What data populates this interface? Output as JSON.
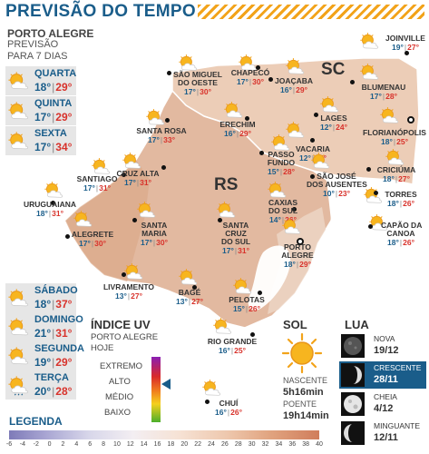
{
  "header": {
    "title": "PREVISÃO DO TEMPO"
  },
  "poa": {
    "title": "PORTO ALEGRE",
    "subtitle_lines": [
      "PREVISÃO",
      "PARA 7 DIAS"
    ],
    "days_top": [
      {
        "name": "QUARTA",
        "min": "18°",
        "max": "29°"
      },
      {
        "name": "QUINTA",
        "min": "17°",
        "max": "29°"
      },
      {
        "name": "SEXTA",
        "min": "17°",
        "max": "34°"
      }
    ],
    "days_bottom": [
      {
        "name": "SÁBADO",
        "min": "18°",
        "max": "37°"
      },
      {
        "name": "DOMINGO",
        "min": "21°",
        "max": "31°"
      },
      {
        "name": "SEGUNDA",
        "min": "19°",
        "max": "29°"
      },
      {
        "name": "TERÇA",
        "min": "20°",
        "max": "28°"
      }
    ]
  },
  "map": {
    "state_rs": "RS",
    "state_sc": "SC",
    "cities": [
      {
        "name": [
          "JOINVILLE"
        ],
        "min": "19°",
        "max": "27°"
      },
      {
        "name": [
          "SÃO MIGUEL",
          "DO OESTE"
        ],
        "min": "17°",
        "max": "30°"
      },
      {
        "name": [
          "CHAPECÓ"
        ],
        "min": "17°",
        "max": "30°"
      },
      {
        "name": [
          "JOAÇABA"
        ],
        "min": "16°",
        "max": "29°"
      },
      {
        "name": [
          "BLUMENAU"
        ],
        "min": "17°",
        "max": "28°"
      },
      {
        "name": [
          "LAGES"
        ],
        "min": "12°",
        "max": "24°"
      },
      {
        "name": [
          "FLORIANÓPOLIS"
        ],
        "min": "18°",
        "max": "25°"
      },
      {
        "name": [
          "SANTA ROSA"
        ],
        "min": "17°",
        "max": "33°"
      },
      {
        "name": [
          "ERECHIM"
        ],
        "min": "16°",
        "max": "29°"
      },
      {
        "name": [
          "PASSO",
          "FUNDO"
        ],
        "min": "15°",
        "max": "28°"
      },
      {
        "name": [
          "VACARIA"
        ],
        "min": "12°",
        "max": "25°"
      },
      {
        "name": [
          "SÃO JOSÉ",
          "DOS AUSENTES"
        ],
        "min": "10°",
        "max": "23°"
      },
      {
        "name": [
          "CRICIÚMA"
        ],
        "min": "18°",
        "max": "27°"
      },
      {
        "name": [
          "SANTIAGO"
        ],
        "min": "17°",
        "max": "31°"
      },
      {
        "name": [
          "CRUZ ALTA"
        ],
        "min": "17°",
        "max": "31°"
      },
      {
        "name": [
          "TORRES"
        ],
        "min": "18°",
        "max": "26°"
      },
      {
        "name": [
          "URUGUAIANA"
        ],
        "min": "18°",
        "max": "31°"
      },
      {
        "name": [
          "CAXIAS",
          "DO SUL"
        ],
        "min": "14°",
        "max": "26°"
      },
      {
        "name": [
          "CAPÃO DA",
          "CANOA"
        ],
        "min": "18°",
        "max": "26°"
      },
      {
        "name": [
          "ALEGRETE"
        ],
        "min": "17°",
        "max": "30°"
      },
      {
        "name": [
          "SANTA",
          "MARIA"
        ],
        "min": "17°",
        "max": "30°"
      },
      {
        "name": [
          "SANTA",
          "CRUZ",
          "DO SUL"
        ],
        "min": "17°",
        "max": "31°"
      },
      {
        "name": [
          "PORTO",
          "ALEGRE"
        ],
        "min": "18°",
        "max": "29°"
      },
      {
        "name": [
          "LIVRAMENTO"
        ],
        "min": "13°",
        "max": "27°"
      },
      {
        "name": [
          "BAGÉ"
        ],
        "min": "13°",
        "max": "27°"
      },
      {
        "name": [
          "PELOTAS"
        ],
        "min": "15°",
        "max": "26°"
      },
      {
        "name": [
          "RIO GRANDE"
        ],
        "min": "16°",
        "max": "25°"
      },
      {
        "name": [
          "CHUÍ"
        ],
        "min": "16°",
        "max": "26°"
      }
    ]
  },
  "uv": {
    "title": "ÍNDICE UV",
    "subtitle": [
      "PORTO ALEGRE",
      "HOJE"
    ],
    "levels": [
      "EXTREMO",
      "ALTO",
      "MÉDIO",
      "BAIXO"
    ],
    "current_level": "ALTO",
    "colors": [
      "#8a1fb3",
      "#d92a2a",
      "#f07d1e",
      "#f5d01e",
      "#4caf2b"
    ]
  },
  "sol": {
    "title": "SOL",
    "sunrise_label": "NASCENTE",
    "sunrise": "5h16min",
    "sunset_label": "POENTE",
    "sunset": "19h14min"
  },
  "lua": {
    "title": "LUA",
    "phases": [
      {
        "name": "NOVA",
        "date": "19/12",
        "icon": "new-moon-icon"
      },
      {
        "name": "CRESCENTE",
        "date": "28/11",
        "icon": "waxing-moon-icon",
        "current": true
      },
      {
        "name": "CHEIA",
        "date": "4/12",
        "icon": "full-moon-icon"
      },
      {
        "name": "MINGUANTE",
        "date": "12/11",
        "icon": "waning-moon-icon"
      }
    ]
  },
  "legend": {
    "title": "LEGENDA",
    "ticks": [
      "-6",
      "-4",
      "-2",
      "0",
      "2",
      "4",
      "6",
      "8",
      "10",
      "12",
      "14",
      "16",
      "18",
      "20",
      "22",
      "24",
      "26",
      "28",
      "30",
      "32",
      "34",
      "36",
      "38",
      "40"
    ]
  },
  "colors": {
    "accent_blue": "#1a5d8a",
    "max_red": "#d8322b",
    "title_stripe": "#f2a31a",
    "map_fill": "#e2b9a0"
  }
}
